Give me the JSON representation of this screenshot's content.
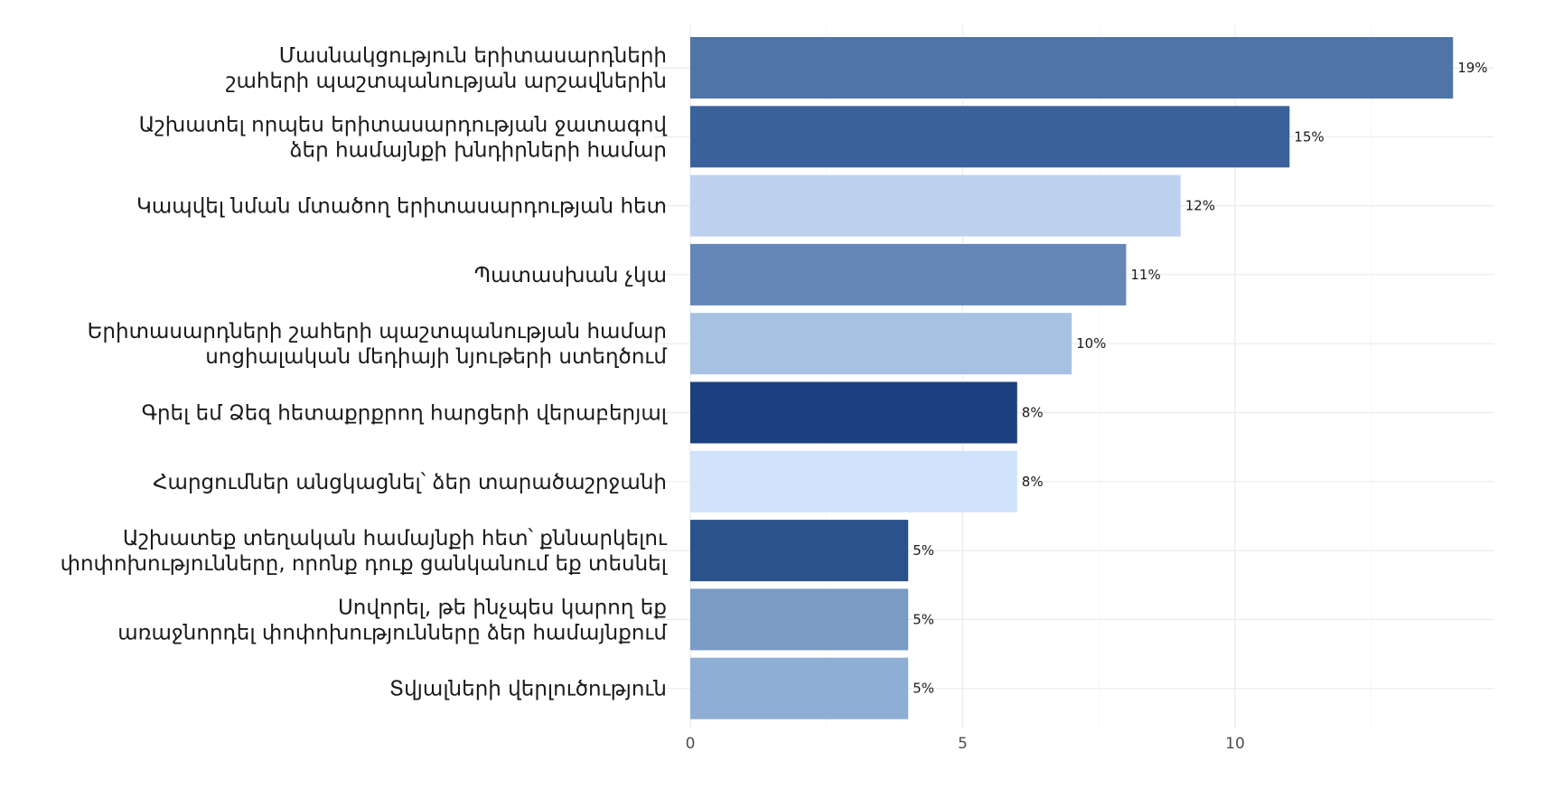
{
  "chart_data": {
    "type": "bar",
    "orientation": "horizontal",
    "title": "",
    "xlabel": "",
    "ylabel": "",
    "xlim": [
      0,
      14.6
    ],
    "x_ticks": [
      0,
      5,
      10
    ],
    "grid": true,
    "legend": "none",
    "categories": [
      [
        "Մասնակցություն երիտասարդների",
        "շահերի պաշտպանության արշավներին"
      ],
      [
        "Աշխատել որպես երիտասարդության ջատագով",
        "ձեր համայնքի խնդիրների համար"
      ],
      [
        "Կապվել նման մտածող երիտասարդության հետ"
      ],
      [
        "Պատասխան չկա"
      ],
      [
        "Երիտասարդների շահերի պաշտպանության համար",
        "սոցիալական մեդիայի նյութերի ստեղծում"
      ],
      [
        "Գրել եմ Ձեզ հետաքրքրող հարցերի վերաբերյալ"
      ],
      [
        "Հարցումներ անցկացնել՝ ձեր տարածաշրջանի"
      ],
      [
        "Աշխատեք տեղական համայնքի հետ՝ քննարկելու",
        "փոփոխությունները, որոնք դուք ցանկանում եք տեսնել"
      ],
      [
        "Սովորել, թե ինչպես կարող եք",
        "առաջնորդել փոփոխությունները ձեր համայնքում"
      ],
      [
        "Տվյալների վերլուծություն"
      ]
    ],
    "values": [
      14,
      11,
      9,
      8,
      7,
      6,
      6,
      4,
      4,
      4
    ],
    "value_labels": [
      "19%",
      "15%",
      "12%",
      "11%",
      "10%",
      "8%",
      "8%",
      "5%",
      "5%",
      "5%"
    ],
    "colors": [
      "#5074a8",
      "#3b629a",
      "#bdd1ee",
      "#6487b8",
      "#a7c1e2",
      "#1c407f",
      "#d1e3fa",
      "#2a528b",
      "#7a9bc6",
      "#8eaed3"
    ]
  }
}
